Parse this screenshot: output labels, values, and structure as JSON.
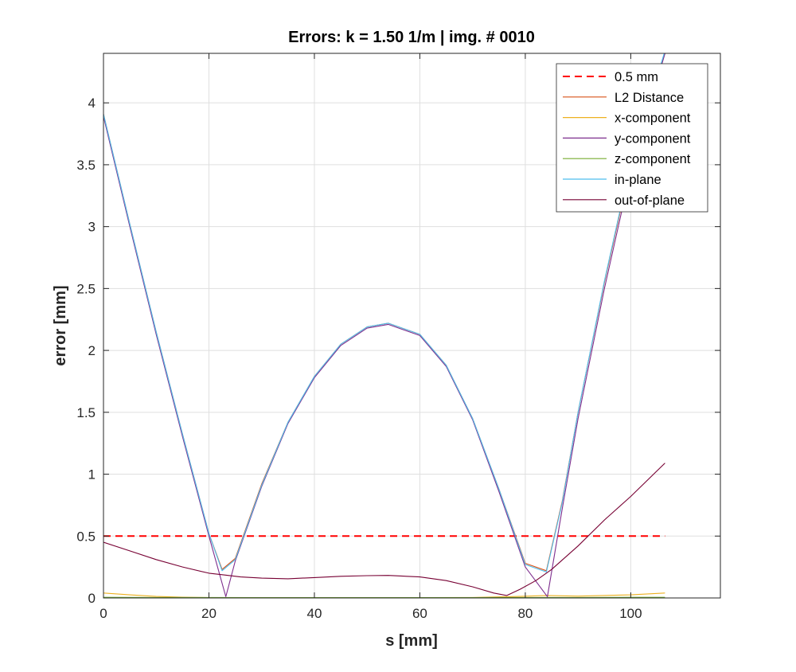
{
  "chart_data": {
    "type": "line",
    "title": "Errors: k = 1.50 1/m | img. # 0010",
    "xlabel": "s [mm]",
    "ylabel": "error [mm]",
    "xlim": [
      0,
      117
    ],
    "ylim": [
      0,
      4.4
    ],
    "xticks": [
      0,
      20,
      40,
      60,
      80,
      100
    ],
    "yticks": [
      0,
      0.5,
      1,
      1.5,
      2,
      2.5,
      3,
      3.5,
      4
    ],
    "xtick_labels": [
      "0",
      "20",
      "40",
      "60",
      "80",
      "100"
    ],
    "ytick_labels": [
      "0",
      "0.5",
      "1",
      "1.5",
      "2",
      "2.5",
      "3",
      "3.5",
      "4"
    ],
    "grid": true,
    "legend_position": "top-right",
    "series": [
      {
        "name": "0.5 mm",
        "color": "#ff0000",
        "dash": true,
        "x": [
          0,
          106.5
        ],
        "y": [
          0.5,
          0.5
        ]
      },
      {
        "name": "L2 Distance",
        "color": "#d95319",
        "x": [
          0,
          5,
          10,
          15,
          20,
          22.5,
          25,
          30,
          35,
          40,
          45,
          50,
          54,
          60,
          65,
          70,
          75,
          80,
          84,
          87,
          90,
          95,
          100,
          106.5
        ],
        "y": [
          3.91,
          3.02,
          2.15,
          1.32,
          0.52,
          0.23,
          0.32,
          0.92,
          1.42,
          1.79,
          2.05,
          2.19,
          2.22,
          2.13,
          1.88,
          1.45,
          0.88,
          0.28,
          0.22,
          0.78,
          1.5,
          2.55,
          3.5,
          4.4
        ]
      },
      {
        "name": "x-component",
        "color": "#edb120",
        "x": [
          0,
          5,
          10,
          15,
          20,
          23,
          30,
          40,
          50,
          60,
          70,
          77,
          84,
          90,
          100,
          106.5
        ],
        "y": [
          0.04,
          0.025,
          0.012,
          0.006,
          0.003,
          0.002,
          0.002,
          0.002,
          0.002,
          0.003,
          0.004,
          0.01,
          0.02,
          0.015,
          0.025,
          0.04
        ]
      },
      {
        "name": "y-component",
        "color": "#7e2f8e",
        "x": [
          0,
          5,
          10,
          15,
          20,
          23.2,
          25,
          30,
          35,
          40,
          45,
          50,
          54,
          60,
          65,
          70,
          75,
          80,
          84.2,
          87,
          90,
          95,
          100,
          106.5
        ],
        "y": [
          3.89,
          3.0,
          2.13,
          1.3,
          0.5,
          0.01,
          0.3,
          0.9,
          1.41,
          1.78,
          2.04,
          2.18,
          2.21,
          2.12,
          1.87,
          1.44,
          0.86,
          0.25,
          0.01,
          0.72,
          1.45,
          2.5,
          3.45,
          4.4
        ]
      },
      {
        "name": "z-component",
        "color": "#77ac30",
        "x": [
          0,
          10,
          20,
          30,
          40,
          50,
          60,
          70,
          80,
          90,
          100,
          106.5
        ],
        "y": [
          0.005,
          0.004,
          0.004,
          0.003,
          0.003,
          0.003,
          0.003,
          0.003,
          0.004,
          0.004,
          0.005,
          0.005
        ]
      },
      {
        "name": "in-plane",
        "color": "#4dbeee",
        "x": [
          0,
          5,
          10,
          15,
          20,
          22.5,
          25,
          30,
          35,
          40,
          45,
          50,
          54,
          60,
          65,
          70,
          75,
          80,
          84,
          87,
          90,
          95,
          100,
          106.5
        ],
        "y": [
          3.91,
          3.02,
          2.15,
          1.32,
          0.52,
          0.22,
          0.31,
          0.91,
          1.42,
          1.79,
          2.05,
          2.19,
          2.22,
          2.13,
          1.88,
          1.45,
          0.88,
          0.27,
          0.21,
          0.77,
          1.5,
          2.56,
          3.52,
          4.42
        ]
      },
      {
        "name": "out-of-plane",
        "color": "#770033",
        "x": [
          0,
          5,
          10,
          15,
          20,
          23,
          26,
          30,
          35,
          40,
          45,
          50,
          54,
          60,
          65,
          70,
          74,
          76.5,
          79,
          82,
          85,
          90,
          95,
          100,
          106.5
        ],
        "y": [
          0.45,
          0.38,
          0.31,
          0.25,
          0.2,
          0.185,
          0.17,
          0.16,
          0.155,
          0.165,
          0.175,
          0.18,
          0.182,
          0.17,
          0.14,
          0.09,
          0.04,
          0.02,
          0.07,
          0.14,
          0.23,
          0.42,
          0.63,
          0.82,
          1.09
        ]
      }
    ]
  }
}
